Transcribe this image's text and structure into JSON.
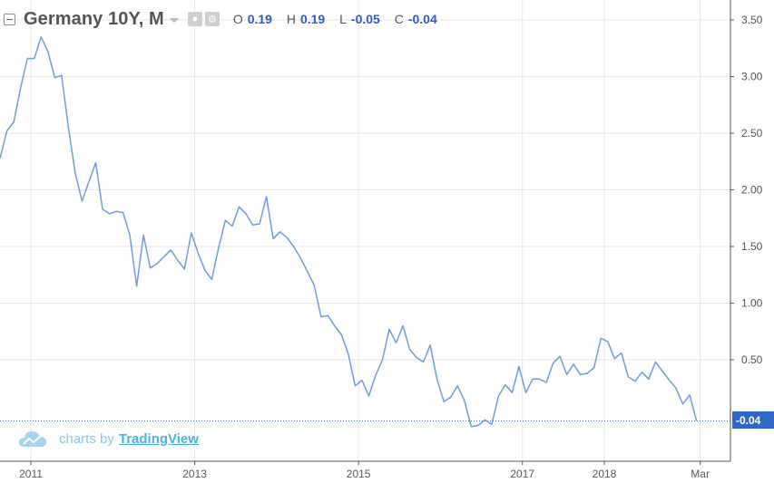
{
  "legend": {
    "title": "Germany 10Y, M",
    "ohlc": [
      {
        "key": "O",
        "value": "0.19"
      },
      {
        "key": "H",
        "value": "0.19"
      },
      {
        "key": "L",
        "value": "-0.05"
      },
      {
        "key": "C",
        "value": "-0.04"
      }
    ]
  },
  "branding": {
    "prefix": "charts by",
    "link": "TradingView"
  },
  "last_price_label": "-0.04",
  "colors": {
    "line": "#6f9ae6",
    "price_tag": "#2f68c9",
    "ohlc_value": "#2a5cc1",
    "grid": "#e6e6e6"
  },
  "chart_data": {
    "type": "line",
    "title": "Germany 10Y, M",
    "ylim": [
      -0.4,
      3.6
    ],
    "y_ticks": [
      0.5,
      1.0,
      1.5,
      2.0,
      2.5,
      3.0,
      3.5
    ],
    "y_tick_labels": [
      "0.50",
      "1.00",
      "1.50",
      "2.00",
      "2.50",
      "3.00",
      "3.50"
    ],
    "x_ticks": [
      2011,
      2013,
      2015,
      2017,
      2018,
      2019.17
    ],
    "x_tick_labels": [
      "2011",
      "2013",
      "2015",
      "2017",
      "2018",
      "Mar"
    ],
    "grid": true,
    "last_value": -0.04,
    "series": [
      {
        "x": [
          2010.625,
          2010.708,
          2010.792,
          2010.875,
          2010.958,
          2011.042,
          2011.125,
          2011.208,
          2011.292,
          2011.375,
          2011.458,
          2011.542,
          2011.625,
          2011.708,
          2011.792,
          2011.875,
          2011.958,
          2012.042,
          2012.125,
          2012.208,
          2012.292,
          2012.375,
          2012.458,
          2012.542,
          2012.625,
          2012.708,
          2012.792,
          2012.875,
          2012.958,
          2013.042,
          2013.125,
          2013.208,
          2013.292,
          2013.375,
          2013.458,
          2013.542,
          2013.625,
          2013.708,
          2013.792,
          2013.875,
          2013.958,
          2014.042,
          2014.125,
          2014.208,
          2014.292,
          2014.375,
          2014.458,
          2014.542,
          2014.625,
          2014.708,
          2014.792,
          2014.875,
          2014.958,
          2015.042,
          2015.125,
          2015.208,
          2015.292,
          2015.375,
          2015.458,
          2015.542,
          2015.625,
          2015.708,
          2015.792,
          2015.875,
          2015.958,
          2016.042,
          2016.125,
          2016.208,
          2016.292,
          2016.375,
          2016.458,
          2016.542,
          2016.625,
          2016.708,
          2016.792,
          2016.875,
          2016.958,
          2017.042,
          2017.125,
          2017.208,
          2017.292,
          2017.375,
          2017.458,
          2017.542,
          2017.625,
          2017.708,
          2017.792,
          2017.875,
          2017.958,
          2018.042,
          2018.125,
          2018.208,
          2018.292,
          2018.375,
          2018.458,
          2018.542,
          2018.625,
          2018.708,
          2018.792,
          2018.875,
          2018.958,
          2019.042,
          2019.125
        ],
        "y": [
          2.28,
          2.52,
          2.6,
          2.9,
          3.16,
          3.16,
          3.35,
          3.22,
          2.99,
          3.01,
          2.55,
          2.15,
          1.9,
          2.07,
          2.24,
          1.83,
          1.79,
          1.81,
          1.8,
          1.6,
          1.15,
          1.6,
          1.31,
          1.35,
          1.41,
          1.47,
          1.38,
          1.3,
          1.62,
          1.44,
          1.29,
          1.21,
          1.49,
          1.73,
          1.68,
          1.85,
          1.79,
          1.69,
          1.7,
          1.94,
          1.57,
          1.63,
          1.58,
          1.5,
          1.4,
          1.28,
          1.16,
          0.88,
          0.89,
          0.8,
          0.72,
          0.55,
          0.27,
          0.32,
          0.18,
          0.36,
          0.5,
          0.77,
          0.65,
          0.8,
          0.59,
          0.52,
          0.48,
          0.63,
          0.33,
          0.13,
          0.17,
          0.27,
          0.14,
          -0.09,
          -0.08,
          -0.03,
          -0.07,
          0.18,
          0.28,
          0.21,
          0.44,
          0.21,
          0.33,
          0.33,
          0.3,
          0.47,
          0.53,
          0.37,
          0.46,
          0.37,
          0.38,
          0.43,
          0.69,
          0.66,
          0.51,
          0.56,
          0.35,
          0.31,
          0.39,
          0.33,
          0.48,
          0.4,
          0.32,
          0.25,
          0.11,
          0.19,
          -0.04
        ]
      }
    ]
  }
}
